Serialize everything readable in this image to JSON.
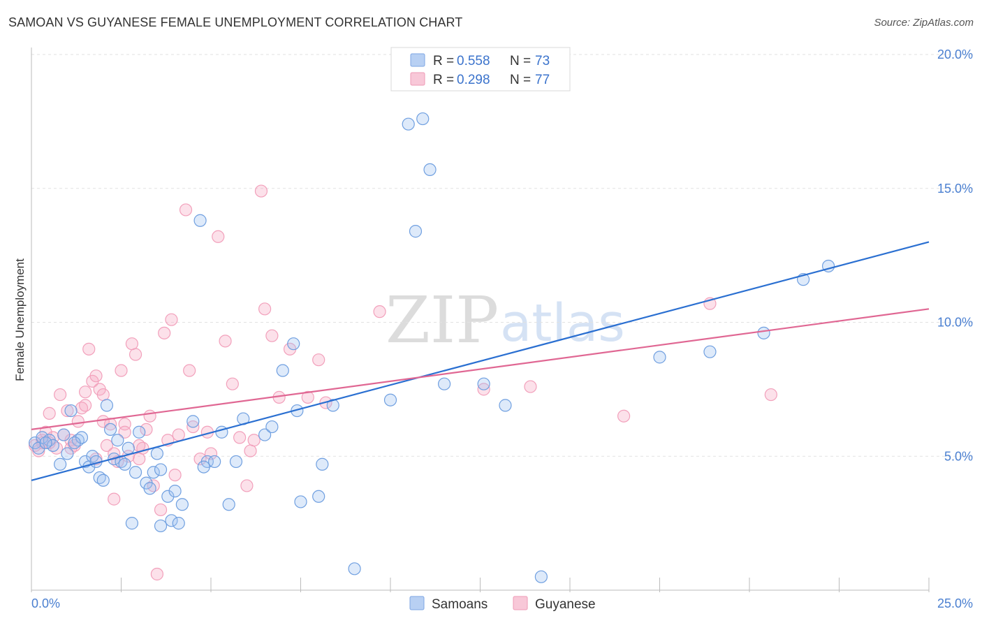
{
  "header": {
    "title": "SAMOAN VS GUYANESE FEMALE UNEMPLOYMENT CORRELATION CHART",
    "source": "Source: ZipAtlas.com"
  },
  "watermark": {
    "zip": "ZIP",
    "atlas": "atlas"
  },
  "legend": {
    "rows": [
      {
        "r_label": "R = ",
        "r_value": "0.558",
        "n_label": "N = ",
        "n_value": "73",
        "color": "#a9c6f0"
      },
      {
        "r_label": "R = ",
        "r_value": "0.298",
        "n_label": "N = ",
        "n_value": "77",
        "color": "#f5b8cc"
      }
    ]
  },
  "bottom_legend": {
    "samoans": "Samoans",
    "guyanese": "Guyanese"
  },
  "chart_data": {
    "type": "scatter",
    "title": "SAMOAN VS GUYANESE FEMALE UNEMPLOYMENT CORRELATION CHART",
    "xlabel": "",
    "ylabel": "Female Unemployment",
    "xlim": [
      0,
      25
    ],
    "ylim": [
      0,
      20
    ],
    "x_tick_labels": [
      "0.0%",
      "25.0%"
    ],
    "y_ticks": [
      5,
      10,
      15,
      20
    ],
    "y_tick_labels": [
      "5.0%",
      "10.0%",
      "15.0%",
      "20.0%"
    ],
    "grid": true,
    "legend_position": "top-center",
    "series": [
      {
        "name": "Samoans",
        "color": "#6f9fe0",
        "line_color": "#2a6fd1",
        "r": 0.558,
        "n": 73,
        "trend": {
          "x0": 0,
          "y0": 4.1,
          "x1": 25,
          "y1": 13.0
        },
        "points": [
          [
            0.1,
            5.5
          ],
          [
            0.2,
            5.3
          ],
          [
            0.3,
            5.7
          ],
          [
            0.5,
            5.6
          ],
          [
            0.6,
            5.4
          ],
          [
            0.8,
            4.7
          ],
          [
            1.0,
            5.1
          ],
          [
            1.1,
            6.7
          ],
          [
            1.3,
            5.6
          ],
          [
            1.4,
            5.7
          ],
          [
            1.5,
            4.8
          ],
          [
            1.6,
            4.6
          ],
          [
            1.7,
            5.0
          ],
          [
            1.8,
            4.8
          ],
          [
            1.9,
            4.2
          ],
          [
            2.0,
            4.1
          ],
          [
            2.2,
            6.0
          ],
          [
            2.3,
            4.9
          ],
          [
            2.5,
            4.8
          ],
          [
            2.6,
            4.7
          ],
          [
            2.7,
            5.3
          ],
          [
            2.9,
            4.4
          ],
          [
            3.0,
            5.9
          ],
          [
            3.2,
            4.0
          ],
          [
            3.4,
            4.4
          ],
          [
            3.5,
            5.1
          ],
          [
            3.6,
            4.5
          ],
          [
            3.8,
            3.5
          ],
          [
            3.9,
            2.6
          ],
          [
            4.0,
            3.7
          ],
          [
            4.2,
            3.2
          ],
          [
            4.5,
            6.3
          ],
          [
            4.7,
            13.8
          ],
          [
            4.9,
            4.8
          ],
          [
            5.1,
            4.8
          ],
          [
            5.3,
            5.9
          ],
          [
            5.5,
            3.2
          ],
          [
            5.7,
            4.8
          ],
          [
            5.9,
            6.4
          ],
          [
            6.5,
            5.8
          ],
          [
            6.7,
            6.1
          ],
          [
            7.0,
            8.2
          ],
          [
            7.3,
            9.2
          ],
          [
            7.4,
            6.7
          ],
          [
            7.5,
            3.3
          ],
          [
            8.0,
            3.5
          ],
          [
            8.1,
            4.7
          ],
          [
            8.4,
            6.9
          ],
          [
            9.0,
            0.8
          ],
          [
            10.0,
            7.1
          ],
          [
            10.5,
            17.4
          ],
          [
            10.7,
            13.4
          ],
          [
            10.9,
            17.6
          ],
          [
            11.1,
            15.7
          ],
          [
            11.5,
            7.7
          ],
          [
            12.6,
            7.7
          ],
          [
            13.2,
            6.9
          ],
          [
            14.2,
            0.5
          ],
          [
            17.5,
            8.7
          ],
          [
            18.9,
            8.9
          ],
          [
            20.4,
            9.6
          ],
          [
            21.5,
            11.6
          ],
          [
            22.2,
            12.1
          ],
          [
            4.8,
            4.6
          ],
          [
            3.3,
            3.8
          ],
          [
            2.8,
            2.5
          ],
          [
            3.6,
            2.4
          ],
          [
            4.1,
            2.5
          ],
          [
            2.1,
            6.9
          ],
          [
            1.2,
            5.5
          ],
          [
            0.9,
            5.8
          ],
          [
            0.4,
            5.5
          ],
          [
            2.4,
            5.6
          ]
        ]
      },
      {
        "name": "Guyanese",
        "color": "#f2a0bb",
        "line_color": "#e06793",
        "r": 0.298,
        "n": 77,
        "trend": {
          "x0": 0,
          "y0": 6.0,
          "x1": 25,
          "y1": 10.5
        },
        "points": [
          [
            0.1,
            5.4
          ],
          [
            0.2,
            5.2
          ],
          [
            0.3,
            5.6
          ],
          [
            0.5,
            5.5
          ],
          [
            0.6,
            5.7
          ],
          [
            0.7,
            5.3
          ],
          [
            0.8,
            7.3
          ],
          [
            0.9,
            5.8
          ],
          [
            1.0,
            6.7
          ],
          [
            1.1,
            5.6
          ],
          [
            1.2,
            5.4
          ],
          [
            1.3,
            6.3
          ],
          [
            1.4,
            6.8
          ],
          [
            1.5,
            7.4
          ],
          [
            1.6,
            9.0
          ],
          [
            1.7,
            7.8
          ],
          [
            1.8,
            8.0
          ],
          [
            1.9,
            7.5
          ],
          [
            2.0,
            7.3
          ],
          [
            2.1,
            5.4
          ],
          [
            2.2,
            6.2
          ],
          [
            2.3,
            5.1
          ],
          [
            2.4,
            4.8
          ],
          [
            2.5,
            8.2
          ],
          [
            2.6,
            6.2
          ],
          [
            2.8,
            9.2
          ],
          [
            2.9,
            8.8
          ],
          [
            3.0,
            4.9
          ],
          [
            3.1,
            5.3
          ],
          [
            3.2,
            6.0
          ],
          [
            3.3,
            6.5
          ],
          [
            3.4,
            3.9
          ],
          [
            3.6,
            3.0
          ],
          [
            3.7,
            9.6
          ],
          [
            3.8,
            5.6
          ],
          [
            3.9,
            10.1
          ],
          [
            4.0,
            4.3
          ],
          [
            4.1,
            5.8
          ],
          [
            4.3,
            14.2
          ],
          [
            4.4,
            8.2
          ],
          [
            4.5,
            6.1
          ],
          [
            4.7,
            4.9
          ],
          [
            5.0,
            5.1
          ],
          [
            5.2,
            13.2
          ],
          [
            5.4,
            9.3
          ],
          [
            5.6,
            7.7
          ],
          [
            5.8,
            5.7
          ],
          [
            6.0,
            3.9
          ],
          [
            6.2,
            5.6
          ],
          [
            6.4,
            14.9
          ],
          [
            6.5,
            10.5
          ],
          [
            6.7,
            9.5
          ],
          [
            6.9,
            7.2
          ],
          [
            7.2,
            9.0
          ],
          [
            7.7,
            7.2
          ],
          [
            8.0,
            8.6
          ],
          [
            8.2,
            7.0
          ],
          [
            9.7,
            10.4
          ],
          [
            12.6,
            7.5
          ],
          [
            13.9,
            7.6
          ],
          [
            16.5,
            6.5
          ],
          [
            18.9,
            10.7
          ],
          [
            20.6,
            7.3
          ],
          [
            3.5,
            0.6
          ],
          [
            2.3,
            3.4
          ],
          [
            2.0,
            6.3
          ],
          [
            1.5,
            6.9
          ],
          [
            0.4,
            5.9
          ],
          [
            0.3,
            5.5
          ],
          [
            1.1,
            5.3
          ],
          [
            4.9,
            5.9
          ],
          [
            3.0,
            5.4
          ],
          [
            2.7,
            5.0
          ],
          [
            6.1,
            5.2
          ],
          [
            1.8,
            4.9
          ],
          [
            0.5,
            6.6
          ],
          [
            2.6,
            5.9
          ]
        ]
      }
    ]
  }
}
